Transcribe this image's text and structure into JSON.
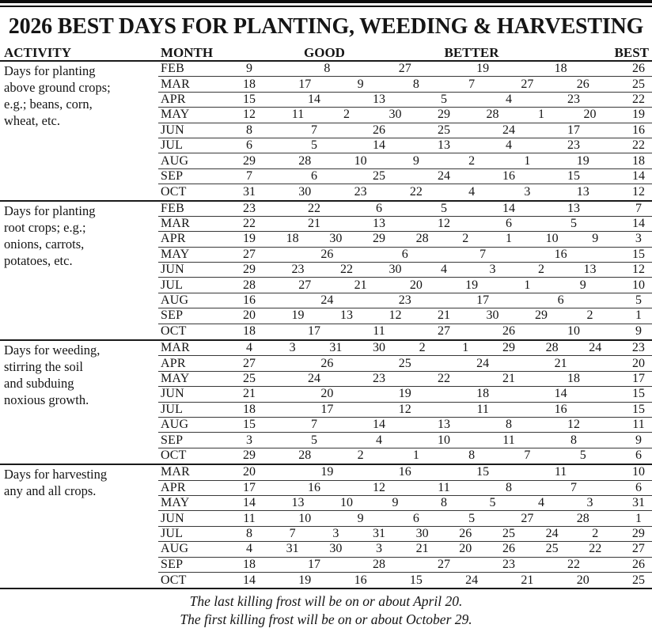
{
  "title": "2026 BEST DAYS FOR PLANTING, WEEDING & HARVESTING",
  "columns": {
    "activity": "ACTIVITY",
    "month": "MONTH",
    "good": "GOOD",
    "better": "BETTER",
    "best": "BEST"
  },
  "sections": [
    {
      "activity": [
        "Days for planting",
        "above ground crops;",
        "e.g.; beans, corn,",
        "wheat, etc."
      ],
      "rows": [
        {
          "month": "FEB",
          "days": [
            9,
            8,
            27,
            19,
            18,
            26
          ]
        },
        {
          "month": "MAR",
          "days": [
            18,
            17,
            9,
            8,
            7,
            27,
            26,
            25
          ]
        },
        {
          "month": "APR",
          "days": [
            15,
            14,
            13,
            5,
            4,
            23,
            22
          ]
        },
        {
          "month": "MAY",
          "days": [
            12,
            11,
            2,
            30,
            29,
            28,
            1,
            20,
            19
          ]
        },
        {
          "month": "JUN",
          "days": [
            8,
            7,
            26,
            25,
            24,
            17,
            16
          ]
        },
        {
          "month": "JUL",
          "days": [
            6,
            5,
            14,
            13,
            4,
            23,
            22
          ]
        },
        {
          "month": "AUG",
          "days": [
            29,
            28,
            10,
            9,
            2,
            1,
            19,
            18
          ]
        },
        {
          "month": "SEP",
          "days": [
            7,
            6,
            25,
            24,
            16,
            15,
            14
          ]
        },
        {
          "month": "OCT",
          "days": [
            31,
            30,
            23,
            22,
            4,
            3,
            13,
            12
          ]
        }
      ]
    },
    {
      "activity": [
        "Days for planting",
        "root crops; e.g.;",
        "onions, carrots,",
        "potatoes, etc."
      ],
      "rows": [
        {
          "month": "FEB",
          "days": [
            23,
            22,
            6,
            5,
            14,
            13,
            7
          ]
        },
        {
          "month": "MAR",
          "days": [
            22,
            21,
            13,
            12,
            6,
            5,
            14
          ]
        },
        {
          "month": "APR",
          "days": [
            19,
            18,
            30,
            29,
            28,
            2,
            1,
            10,
            9,
            3
          ]
        },
        {
          "month": "MAY",
          "days": [
            27,
            26,
            6,
            7,
            16,
            15
          ]
        },
        {
          "month": "JUN",
          "days": [
            29,
            23,
            22,
            30,
            4,
            3,
            2,
            13,
            12
          ]
        },
        {
          "month": "JUL",
          "days": [
            28,
            27,
            21,
            20,
            19,
            1,
            9,
            10
          ]
        },
        {
          "month": "AUG",
          "days": [
            16,
            24,
            23,
            17,
            6,
            5
          ]
        },
        {
          "month": "SEP",
          "days": [
            20,
            19,
            13,
            12,
            21,
            30,
            29,
            2,
            1
          ]
        },
        {
          "month": "OCT",
          "days": [
            18,
            17,
            11,
            27,
            26,
            10,
            9
          ]
        }
      ]
    },
    {
      "activity": [
        "Days for weeding,",
        "stirring the soil",
        "and subduing",
        "noxious growth."
      ],
      "rows": [
        {
          "month": "MAR",
          "days": [
            4,
            3,
            31,
            30,
            2,
            1,
            29,
            28,
            24,
            23
          ]
        },
        {
          "month": "APR",
          "days": [
            27,
            26,
            25,
            24,
            21,
            20
          ]
        },
        {
          "month": "MAY",
          "days": [
            25,
            24,
            23,
            22,
            21,
            18,
            17
          ]
        },
        {
          "month": "JUN",
          "days": [
            21,
            20,
            19,
            18,
            14,
            15
          ]
        },
        {
          "month": "JUL",
          "days": [
            18,
            17,
            12,
            11,
            16,
            15
          ]
        },
        {
          "month": "AUG",
          "days": [
            15,
            7,
            14,
            13,
            8,
            12,
            11
          ]
        },
        {
          "month": "SEP",
          "days": [
            3,
            5,
            4,
            10,
            11,
            8,
            9
          ]
        },
        {
          "month": "OCT",
          "days": [
            29,
            28,
            2,
            1,
            8,
            7,
            5,
            6
          ]
        }
      ]
    },
    {
      "activity": [
        "Days for harvesting",
        "any and all crops."
      ],
      "rows": [
        {
          "month": "MAR",
          "days": [
            20,
            19,
            16,
            15,
            11,
            10
          ]
        },
        {
          "month": "APR",
          "days": [
            17,
            16,
            12,
            11,
            8,
            7,
            6
          ]
        },
        {
          "month": "MAY",
          "days": [
            14,
            13,
            10,
            9,
            8,
            5,
            4,
            3,
            31
          ]
        },
        {
          "month": "JUN",
          "days": [
            11,
            10,
            9,
            6,
            5,
            27,
            28,
            1
          ]
        },
        {
          "month": "JUL",
          "days": [
            8,
            7,
            3,
            31,
            30,
            26,
            25,
            24,
            2,
            29
          ]
        },
        {
          "month": "AUG",
          "days": [
            4,
            31,
            30,
            3,
            21,
            20,
            26,
            25,
            22,
            27
          ]
        },
        {
          "month": "SEP",
          "days": [
            18,
            17,
            28,
            27,
            23,
            22,
            26
          ]
        },
        {
          "month": "OCT",
          "days": [
            14,
            19,
            16,
            15,
            24,
            21,
            20,
            25
          ]
        }
      ]
    }
  ],
  "footer": [
    "The last killing frost will be on or about April 20.",
    "The first killing frost will be on or about October 29."
  ]
}
